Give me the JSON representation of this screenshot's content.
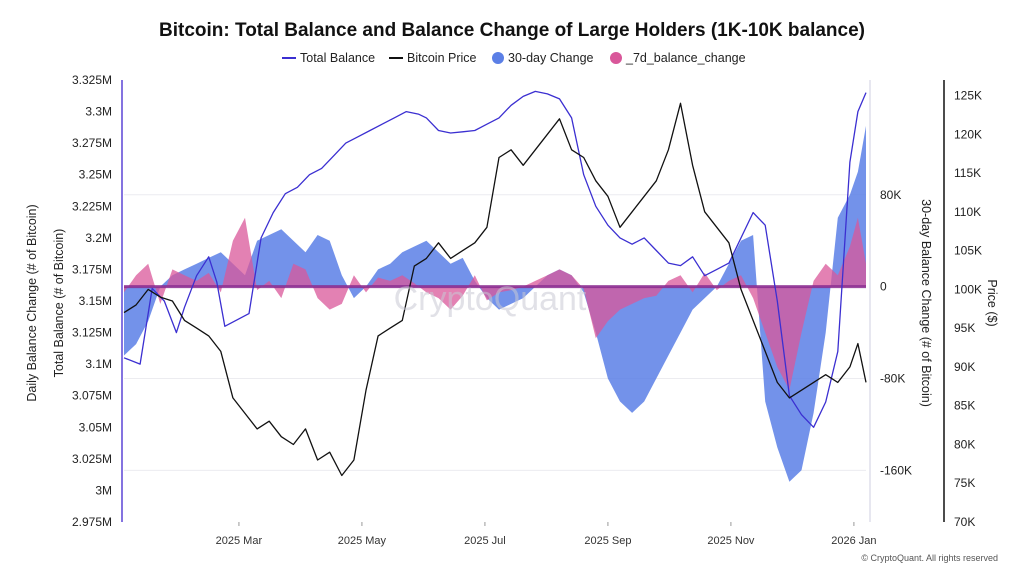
{
  "chart_data": {
    "type": "area",
    "title": "Bitcoin: Total Balance and Balance Change of Large Holders (1K-10K balance)",
    "legend": [
      {
        "name": "Total Balance",
        "style": "line",
        "color": "#3b2fd1"
      },
      {
        "name": "Bitcoin Price",
        "style": "line",
        "color": "#111111"
      },
      {
        "name": "30-day Change",
        "style": "dot",
        "color": "#5b7fe6"
      },
      {
        "name": "_7d_balance_change",
        "style": "dot",
        "color": "#d9579a"
      }
    ],
    "legend_position": "top-center",
    "x_ticks": [
      "2025 Mar",
      "2025 May",
      "2025 Jul",
      "2025 Sep",
      "2025 Nov",
      "2026 Jan"
    ],
    "x_range_days": [
      0,
      368
    ],
    "x_tick_days": [
      57,
      118,
      179,
      240,
      301,
      362
    ],
    "axes": {
      "left_inner": {
        "label": "Total Balance (# of Bitcoin)",
        "range": [
          2975000,
          3325000
        ],
        "ticks": [
          {
            "value": 3325000,
            "label": "3.325M"
          },
          {
            "value": 3300000,
            "label": "3.3M"
          },
          {
            "value": 3275000,
            "label": "3.275M"
          },
          {
            "value": 3250000,
            "label": "3.25M"
          },
          {
            "value": 3225000,
            "label": "3.225M"
          },
          {
            "value": 3200000,
            "label": "3.2M"
          },
          {
            "value": 3175000,
            "label": "3.175M"
          },
          {
            "value": 3150000,
            "label": "3.15M"
          },
          {
            "value": 3125000,
            "label": "3.125M"
          },
          {
            "value": 3100000,
            "label": "3.1M"
          },
          {
            "value": 3075000,
            "label": "3.075M"
          },
          {
            "value": 3050000,
            "label": "3.05M"
          },
          {
            "value": 3025000,
            "label": "3.025M"
          },
          {
            "value": 3000000,
            "label": "3M"
          },
          {
            "value": 2975000,
            "label": "2.975M"
          }
        ]
      },
      "left_outer": {
        "label": "Daily Balance Change (# of Bitcoin)"
      },
      "right_inner": {
        "label": "30-day Balance Change (# of Bitcoin)",
        "range": [
          -205000,
          180000
        ],
        "ticks": [
          {
            "value": 80000,
            "label": "80K"
          },
          {
            "value": 0,
            "label": "0"
          },
          {
            "value": -80000,
            "label": "-80K"
          },
          {
            "value": -160000,
            "label": "-160K"
          }
        ]
      },
      "right_outer": {
        "label": "Price ($)",
        "range": [
          70000,
          127000
        ],
        "ticks": [
          {
            "value": 125000,
            "label": "125K"
          },
          {
            "value": 120000,
            "label": "120K"
          },
          {
            "value": 115000,
            "label": "115K"
          },
          {
            "value": 110000,
            "label": "110K"
          },
          {
            "value": 105000,
            "label": "105K"
          },
          {
            "value": 100000,
            "label": "100K"
          },
          {
            "value": 95000,
            "label": "95K"
          },
          {
            "value": 90000,
            "label": "90K"
          },
          {
            "value": 85000,
            "label": "85K"
          },
          {
            "value": 80000,
            "label": "80K"
          },
          {
            "value": 75000,
            "label": "75K"
          },
          {
            "value": 70000,
            "label": "70K"
          }
        ]
      }
    },
    "series": [
      {
        "name": "Total Balance",
        "axis": "left_inner",
        "x": [
          0,
          8,
          14,
          20,
          26,
          30,
          36,
          42,
          46,
          50,
          56,
          62,
          68,
          74,
          80,
          86,
          92,
          98,
          104,
          110,
          116,
          122,
          128,
          134,
          140,
          146,
          150,
          156,
          162,
          168,
          174,
          180,
          186,
          192,
          198,
          204,
          210,
          216,
          222,
          228,
          234,
          240,
          246,
          252,
          258,
          264,
          270,
          276,
          282,
          288,
          294,
          300,
          306,
          312,
          318,
          324,
          330,
          336,
          342,
          348,
          354,
          360,
          364,
          368
        ],
        "values": [
          3105000,
          3100000,
          3160000,
          3150000,
          3125000,
          3145000,
          3170000,
          3185000,
          3165000,
          3130000,
          3135000,
          3140000,
          3200000,
          3220000,
          3235000,
          3240000,
          3250000,
          3255000,
          3265000,
          3275000,
          3280000,
          3285000,
          3290000,
          3295000,
          3300000,
          3298000,
          3295000,
          3285000,
          3283000,
          3284000,
          3285000,
          3290000,
          3295000,
          3305000,
          3312000,
          3316000,
          3314000,
          3310000,
          3295000,
          3250000,
          3225000,
          3210000,
          3200000,
          3195000,
          3200000,
          3190000,
          3180000,
          3178000,
          3185000,
          3170000,
          3175000,
          3180000,
          3200000,
          3220000,
          3210000,
          3150000,
          3075000,
          3060000,
          3050000,
          3070000,
          3110000,
          3260000,
          3300000,
          3315000
        ]
      },
      {
        "name": "Bitcoin Price",
        "axis": "right_outer",
        "x": [
          0,
          6,
          12,
          18,
          24,
          30,
          36,
          42,
          48,
          54,
          60,
          66,
          72,
          78,
          84,
          90,
          96,
          102,
          108,
          114,
          120,
          126,
          132,
          138,
          144,
          150,
          156,
          162,
          168,
          174,
          180,
          186,
          192,
          198,
          204,
          210,
          216,
          222,
          228,
          234,
          240,
          246,
          252,
          258,
          264,
          270,
          276,
          282,
          288,
          294,
          300,
          306,
          312,
          318,
          324,
          330,
          336,
          342,
          348,
          354,
          360,
          364,
          368
        ],
        "values": [
          97000,
          98000,
          100000,
          99000,
          98500,
          96000,
          95000,
          94000,
          92000,
          86000,
          84000,
          82000,
          83000,
          81000,
          80000,
          82000,
          78000,
          79000,
          76000,
          78000,
          87000,
          94000,
          95000,
          96000,
          103000,
          104000,
          106000,
          104000,
          105000,
          106000,
          108000,
          117000,
          118000,
          116000,
          118000,
          120000,
          122000,
          118000,
          117000,
          114000,
          112000,
          108000,
          110000,
          112000,
          114000,
          118000,
          124000,
          116000,
          110000,
          108000,
          106000,
          100000,
          96000,
          92000,
          88000,
          86000,
          87000,
          88000,
          89000,
          88000,
          90000,
          93000,
          88000
        ]
      },
      {
        "name": "30-day Change",
        "axis": "right_inner",
        "x": [
          0,
          6,
          12,
          18,
          24,
          30,
          36,
          42,
          48,
          54,
          60,
          66,
          72,
          78,
          84,
          90,
          96,
          102,
          108,
          114,
          120,
          126,
          132,
          138,
          144,
          150,
          156,
          162,
          168,
          174,
          180,
          186,
          192,
          198,
          204,
          210,
          216,
          222,
          228,
          234,
          240,
          246,
          252,
          258,
          264,
          270,
          276,
          282,
          288,
          294,
          300,
          306,
          312,
          318,
          324,
          330,
          336,
          342,
          348,
          354,
          360,
          364,
          368
        ],
        "values": [
          -60000,
          -50000,
          -30000,
          0,
          10000,
          15000,
          20000,
          25000,
          30000,
          20000,
          10000,
          40000,
          45000,
          50000,
          40000,
          30000,
          45000,
          40000,
          10000,
          -10000,
          0,
          15000,
          20000,
          30000,
          35000,
          40000,
          30000,
          20000,
          25000,
          5000,
          -10000,
          -20000,
          -15000,
          -10000,
          0,
          10000,
          15000,
          10000,
          -5000,
          -40000,
          -80000,
          -100000,
          -110000,
          -100000,
          -80000,
          -60000,
          -40000,
          -20000,
          -10000,
          0,
          20000,
          40000,
          45000,
          -100000,
          -140000,
          -170000,
          -160000,
          -110000,
          -40000,
          60000,
          80000,
          100000,
          140000
        ]
      },
      {
        "name": "_7d_balance_change",
        "axis": "right_inner",
        "x": [
          0,
          6,
          12,
          18,
          24,
          30,
          36,
          42,
          48,
          54,
          60,
          66,
          72,
          78,
          84,
          90,
          96,
          102,
          108,
          114,
          120,
          126,
          132,
          138,
          144,
          150,
          156,
          162,
          168,
          174,
          180,
          186,
          192,
          198,
          204,
          210,
          216,
          222,
          228,
          234,
          240,
          246,
          252,
          258,
          264,
          270,
          276,
          282,
          288,
          294,
          300,
          306,
          312,
          318,
          324,
          330,
          336,
          342,
          348,
          354,
          360,
          364,
          368
        ],
        "values": [
          -5000,
          10000,
          20000,
          -15000,
          15000,
          10000,
          5000,
          12000,
          -5000,
          40000,
          60000,
          -3000,
          5000,
          -10000,
          20000,
          15000,
          -10000,
          -20000,
          -15000,
          10000,
          -5000,
          8000,
          5000,
          10000,
          3000,
          -5000,
          -10000,
          -20000,
          -8000,
          10000,
          -12000,
          -5000,
          -3000,
          0,
          5000,
          10000,
          15000,
          10000,
          -2000,
          -45000,
          -30000,
          -20000,
          -15000,
          -10000,
          -8000,
          5000,
          10000,
          -5000,
          12000,
          -3000,
          5000,
          10000,
          -10000,
          -40000,
          -70000,
          -90000,
          -40000,
          5000,
          20000,
          10000,
          35000,
          60000,
          20000
        ]
      }
    ],
    "watermark": "CryptoQuant",
    "credit": "© CryptoQuant. All rights reserved"
  }
}
